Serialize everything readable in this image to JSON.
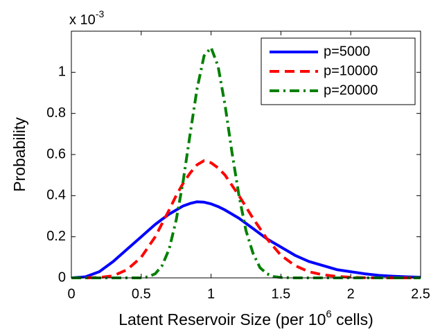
{
  "chart_data": {
    "type": "line",
    "ylabel": "Probability",
    "xlabel": {
      "text": "Latent Reservoir Size (per 10",
      "superscript": "6",
      "suffix": " cells)"
    },
    "y_multiplier": {
      "base": "x 10",
      "exponent": "-3"
    },
    "x": [
      0,
      0.1,
      0.2,
      0.3,
      0.4,
      0.5,
      0.55,
      0.6,
      0.65,
      0.7,
      0.75,
      0.8,
      0.85,
      0.9,
      0.95,
      1.0,
      1.05,
      1.1,
      1.15,
      1.2,
      1.25,
      1.3,
      1.35,
      1.4,
      1.45,
      1.5,
      1.6,
      1.7,
      1.8,
      1.9,
      2.0,
      2.1,
      2.2,
      2.3,
      2.4,
      2.5
    ],
    "series": [
      {
        "name": "p=5000",
        "color": "#0000ff",
        "dash": "solid",
        "values": [
          0,
          0.005,
          0.03,
          0.08,
          0.14,
          0.2,
          0.23,
          0.26,
          0.285,
          0.31,
          0.33,
          0.35,
          0.362,
          0.37,
          0.368,
          0.36,
          0.347,
          0.33,
          0.31,
          0.29,
          0.265,
          0.24,
          0.215,
          0.19,
          0.17,
          0.15,
          0.11,
          0.08,
          0.06,
          0.04,
          0.03,
          0.02,
          0.012,
          0.008,
          0.005,
          0.003
        ]
      },
      {
        "name": "p=10000",
        "color": "#ff0000",
        "dash": "dashed",
        "values": [
          0,
          0,
          0.002,
          0.01,
          0.04,
          0.1,
          0.15,
          0.2,
          0.265,
          0.33,
          0.4,
          0.46,
          0.51,
          0.55,
          0.57,
          0.56,
          0.535,
          0.5,
          0.45,
          0.4,
          0.345,
          0.29,
          0.24,
          0.19,
          0.15,
          0.11,
          0.06,
          0.03,
          0.015,
          0.007,
          0.003,
          0.001,
          0,
          0,
          0,
          0
        ]
      },
      {
        "name": "p=20000",
        "color": "#008000",
        "dash": "dashdot",
        "values": [
          0,
          0,
          0,
          0,
          0,
          0,
          0.005,
          0.02,
          0.06,
          0.14,
          0.28,
          0.47,
          0.7,
          0.92,
          1.08,
          1.12,
          1.03,
          0.84,
          0.61,
          0.4,
          0.23,
          0.12,
          0.05,
          0.02,
          0.006,
          0.002,
          0,
          0,
          0,
          0,
          0,
          0,
          0,
          0,
          0,
          0
        ]
      }
    ],
    "xlim": [
      0,
      2.5
    ],
    "xticks": [
      0,
      0.5,
      1,
      1.5,
      2,
      2.5
    ],
    "ylim": [
      0,
      1.2
    ],
    "yticks": [
      0,
      0.2,
      0.4,
      0.6,
      0.8,
      1
    ],
    "legend": "upper right",
    "grid": false
  }
}
